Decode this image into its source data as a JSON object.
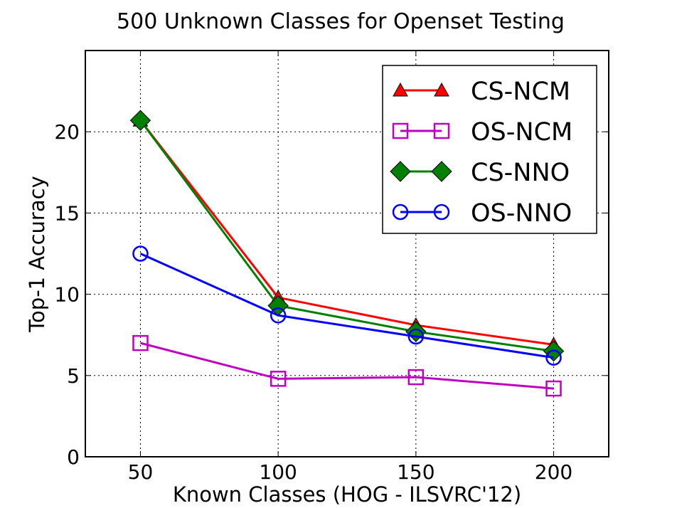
{
  "chart_data": {
    "type": "line",
    "title": "500 Unknown Classes for Openset Testing",
    "xlabel": "Known Classes (HOG - ILSVRC'12)",
    "ylabel": "Top-1 Accuracy",
    "x": [
      50,
      100,
      150,
      200
    ],
    "xlim": [
      30,
      220
    ],
    "ylim": [
      0,
      25
    ],
    "xticks": [
      "50",
      "100",
      "150",
      "200"
    ],
    "yticks": [
      "0",
      "5",
      "10",
      "15",
      "20"
    ],
    "grid": true,
    "legend_position": "top-right",
    "series": [
      {
        "name": "CS-NCM",
        "color": "#ff0000",
        "marker": "triangle",
        "values": [
          20.7,
          9.8,
          8.1,
          6.9
        ]
      },
      {
        "name": "OS-NCM",
        "color": "#bf00bf",
        "marker": "square",
        "values": [
          7.0,
          4.8,
          4.9,
          4.2
        ]
      },
      {
        "name": "CS-NNO",
        "color": "#008000",
        "marker": "diamond",
        "values": [
          20.7,
          9.3,
          7.7,
          6.5
        ]
      },
      {
        "name": "OS-NNO",
        "color": "#0000ff",
        "marker": "circle",
        "values": [
          12.5,
          8.7,
          7.4,
          6.1
        ]
      }
    ]
  }
}
